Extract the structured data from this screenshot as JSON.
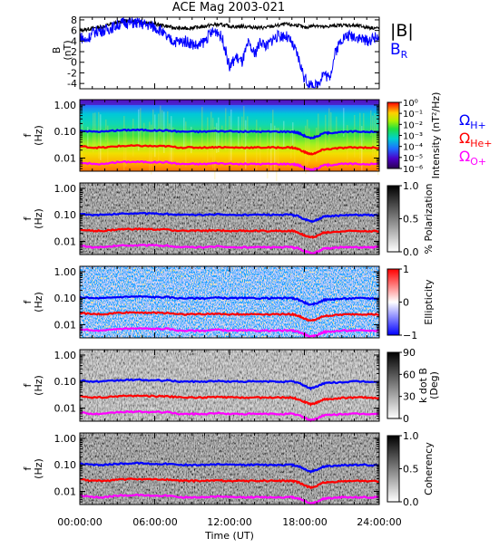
{
  "title": "ACE Mag 2003-021",
  "x_axis": {
    "ticks": [
      "00:00:00",
      "06:00:00",
      "12:00:00",
      "18:00:00",
      "24:00:00"
    ],
    "label": "Time (UT)"
  },
  "colors": {
    "b_total": "#000000",
    "b_r": "#0000ff",
    "omega_h": "#0000ff",
    "omega_he": "#ff0000",
    "omega_o": "#ff00ff"
  },
  "legend_b": {
    "total": "|B|",
    "br_main": "B",
    "br_sub": "R"
  },
  "legend_omega": [
    {
      "sym": "Ω",
      "sub": "H+",
      "color": "#0000ff"
    },
    {
      "sym": "Ω",
      "sub": "He+",
      "color": "#ff0000"
    },
    {
      "sym": "Ω",
      "sub": "O+",
      "color": "#ff00ff"
    }
  ],
  "chart_data": [
    {
      "type": "line",
      "name": "field",
      "ylabel_top": "B",
      "ylabel_bottom": "(nT)",
      "yticks": [
        "8",
        "6",
        "4",
        "2",
        "0",
        "-2",
        "-4"
      ],
      "ylim": [
        -5,
        8.5
      ],
      "xlim_hours": [
        0,
        24
      ],
      "series": [
        {
          "name": "|B|",
          "color": "#000000",
          "x": [
            0,
            0.5,
            1,
            1.5,
            2,
            2.5,
            3,
            3.5,
            4,
            4.5,
            5,
            5.5,
            6,
            6.5,
            7,
            7.5,
            8,
            8.5,
            9,
            9.5,
            10,
            10.5,
            11,
            11.5,
            12,
            12.5,
            13,
            13.5,
            14,
            14.5,
            15,
            15.5,
            16,
            16.5,
            17,
            17.5,
            18,
            18.5,
            19,
            19.5,
            20,
            20.5,
            21,
            21.5,
            22,
            22.5,
            23,
            23.5,
            24
          ],
          "y": [
            6.0,
            6.2,
            6.4,
            6.6,
            6.8,
            7.2,
            7.5,
            7.8,
            7.8,
            7.7,
            7.6,
            7.4,
            7.2,
            7.0,
            6.8,
            6.5,
            6.4,
            6.4,
            6.5,
            6.6,
            6.8,
            7.0,
            7.1,
            7.0,
            6.8,
            6.7,
            6.8,
            6.7,
            6.6,
            6.5,
            6.6,
            6.8,
            7.0,
            7.2,
            7.0,
            7.0,
            6.5,
            6.8,
            7.0,
            6.6,
            6.8,
            6.9,
            7.0,
            7.0,
            6.9,
            6.8,
            6.6,
            6.5,
            6.4
          ]
        },
        {
          "name": "B_R",
          "color": "#0000ff",
          "x": [
            0,
            0.5,
            1,
            1.5,
            2,
            2.5,
            3,
            3.5,
            4,
            4.5,
            5,
            5.5,
            6,
            6.5,
            7,
            7.5,
            8,
            8.5,
            9,
            9.5,
            10,
            10.5,
            11,
            11.5,
            12,
            12.5,
            13,
            13.5,
            14,
            14.5,
            15,
            15.5,
            16,
            16.5,
            17,
            17.5,
            18,
            18.5,
            19,
            19.5,
            20,
            20.5,
            21,
            21.5,
            22,
            22.5,
            23,
            23.5,
            24
          ],
          "y": [
            5.0,
            4.0,
            5.5,
            6.0,
            6.0,
            6.5,
            7.0,
            7.5,
            7.5,
            7.4,
            7.2,
            7.0,
            6.6,
            6.0,
            4.5,
            4.0,
            3.8,
            4.0,
            3.5,
            3.0,
            4.0,
            5.5,
            6.0,
            4.0,
            -1.0,
            1.0,
            0.0,
            3.5,
            1.5,
            4.0,
            3.0,
            4.5,
            5.0,
            5.0,
            3.5,
            1.0,
            -3.0,
            -4.5,
            -4.5,
            -2.0,
            -3.0,
            2.0,
            4.5,
            5.0,
            5.0,
            4.5,
            4.0,
            4.5,
            5.0
          ]
        }
      ]
    },
    {
      "type": "heatmap",
      "name": "intensity",
      "ylabel_top": "f",
      "ylabel_bottom": "(Hz)",
      "yticks": [
        "1.00",
        "0.10",
        "0.01"
      ],
      "scale": "log",
      "cbar_label": "Intensity (nT²/Hz)",
      "cbar_ticks": [
        "10⁰",
        "10⁻¹",
        "10⁻²",
        "10⁻³",
        "10⁻⁴",
        "10⁻⁵",
        "10⁻⁶"
      ]
    },
    {
      "type": "heatmap",
      "name": "polarization",
      "ylabel_top": "f",
      "ylabel_bottom": "(Hz)",
      "yticks": [
        "1.00",
        "0.10",
        "0.01"
      ],
      "scale": "log",
      "cbar_label": "% Polarization",
      "cbar_ticks": [
        "1.0",
        "0.5",
        "0.0"
      ]
    },
    {
      "type": "heatmap",
      "name": "ellipticity",
      "ylabel_top": "f",
      "ylabel_bottom": "(Hz)",
      "yticks": [
        "1.00",
        "0.10",
        "0.01"
      ],
      "scale": "log",
      "cbar_label": "Ellipticity",
      "cbar_ticks": [
        "1",
        "0",
        "−1"
      ]
    },
    {
      "type": "heatmap",
      "name": "kdotb",
      "ylabel_top": "f",
      "ylabel_bottom": "(Hz)",
      "yticks": [
        "1.00",
        "0.10",
        "0.01"
      ],
      "scale": "log",
      "cbar_label": "k dot B (Deg)",
      "cbar_label_lines": [
        "k dot B",
        "(Deg)"
      ],
      "cbar_ticks": [
        "90",
        "60",
        "30",
        "0"
      ]
    },
    {
      "type": "heatmap",
      "name": "coherency",
      "ylabel_top": "f",
      "ylabel_bottom": "(Hz)",
      "yticks": [
        "1.00",
        "0.10",
        "0.01"
      ],
      "scale": "log",
      "cbar_label": "Coherency",
      "cbar_ticks": [
        "1.0",
        "0.5",
        "0.0"
      ]
    }
  ],
  "gyro_lines": {
    "x_hours": [
      0,
      1,
      2,
      3,
      4,
      5,
      6,
      7,
      8,
      9,
      10,
      11,
      12,
      13,
      14,
      15,
      16,
      17,
      17.5,
      18,
      18.5,
      19,
      19.5,
      20,
      21,
      22,
      23,
      24
    ],
    "omega_h_hz": [
      0.11,
      0.1,
      0.1,
      0.11,
      0.115,
      0.115,
      0.11,
      0.11,
      0.1,
      0.1,
      0.1,
      0.105,
      0.1,
      0.1,
      0.1,
      0.1,
      0.1,
      0.1,
      0.09,
      0.07,
      0.055,
      0.065,
      0.085,
      0.09,
      0.095,
      0.1,
      0.1,
      0.095
    ],
    "omega_he_hz": [
      0.028,
      0.025,
      0.025,
      0.028,
      0.029,
      0.029,
      0.028,
      0.028,
      0.025,
      0.025,
      0.025,
      0.026,
      0.025,
      0.025,
      0.025,
      0.025,
      0.025,
      0.025,
      0.022,
      0.017,
      0.014,
      0.016,
      0.021,
      0.022,
      0.024,
      0.025,
      0.025,
      0.024
    ],
    "omega_o_hz": [
      0.007,
      0.006,
      0.006,
      0.007,
      0.0072,
      0.0072,
      0.007,
      0.007,
      0.006,
      0.006,
      0.006,
      0.0065,
      0.006,
      0.006,
      0.006,
      0.006,
      0.006,
      0.006,
      0.0055,
      0.0044,
      0.0035,
      0.004,
      0.0053,
      0.0055,
      0.006,
      0.006,
      0.006,
      0.006
    ]
  }
}
